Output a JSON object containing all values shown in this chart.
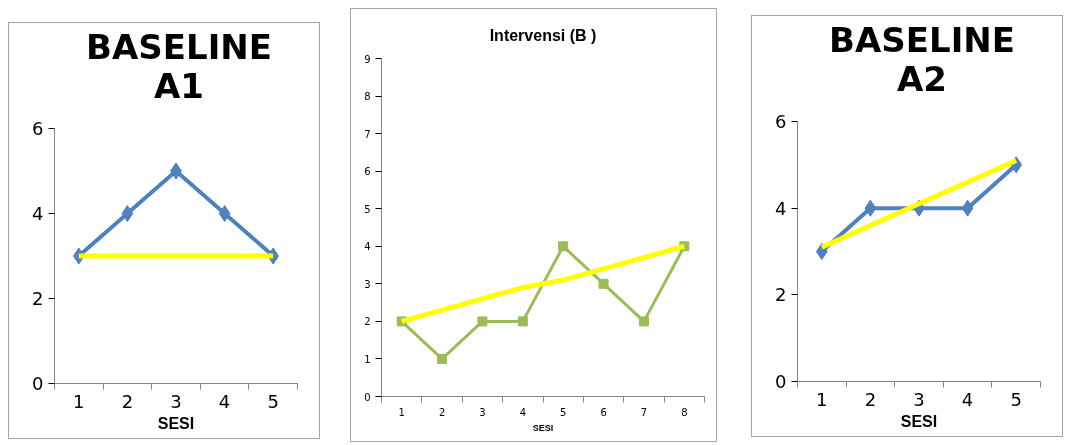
{
  "chart_data": [
    {
      "type": "line",
      "title": "BASELINE A1",
      "xlabel": "SESI",
      "categories": [
        "1",
        "2",
        "3",
        "4",
        "5"
      ],
      "ylim": [
        0,
        6
      ],
      "yticks": [
        0,
        2,
        4,
        6
      ],
      "grid": false,
      "series": [
        {
          "color": "#4f81bd",
          "marker": "diamond",
          "values": [
            3,
            4,
            5,
            4,
            3
          ]
        },
        {
          "type": "line",
          "color": "#ffff00",
          "marker": "none",
          "values": [
            3,
            3,
            3,
            3,
            3
          ]
        }
      ]
    },
    {
      "type": "line",
      "title": "Intervensi (B )",
      "xlabel": "SESI",
      "categories": [
        "1",
        "2",
        "3",
        "4",
        "5",
        "6",
        "7",
        "8"
      ],
      "ylim": [
        0,
        9
      ],
      "yticks": [
        0,
        1,
        2,
        3,
        4,
        5,
        6,
        7,
        8,
        9
      ],
      "grid": false,
      "series": [
        {
          "color": "#9bbb59",
          "marker": "square",
          "values": [
            2,
            1,
            2,
            2,
            4,
            3,
            2,
            4
          ]
        },
        {
          "type": "line",
          "color": "#ffff00",
          "marker": "none",
          "values": [
            2.0,
            2.3,
            2.6,
            2.9,
            3.1,
            3.4,
            3.7,
            4.0
          ]
        }
      ]
    },
    {
      "type": "line",
      "title": "BASELINE A2",
      "xlabel": "SESI",
      "categories": [
        "1",
        "2",
        "3",
        "4",
        "5"
      ],
      "ylim": [
        0,
        6
      ],
      "yticks": [
        0,
        2,
        4,
        6
      ],
      "grid": false,
      "series": [
        {
          "color": "#4f81bd",
          "marker": "diamond",
          "values": [
            3,
            4,
            4,
            4,
            5
          ]
        },
        {
          "type": "line",
          "color": "#ffff00",
          "marker": "none",
          "values": [
            3.1,
            3.6,
            4.1,
            4.6,
            5.1
          ]
        }
      ]
    }
  ]
}
